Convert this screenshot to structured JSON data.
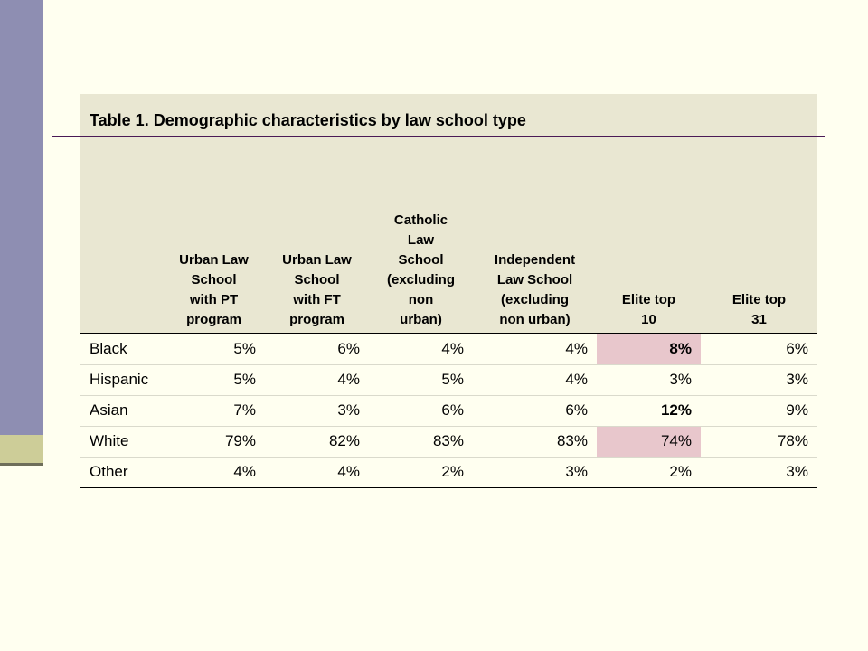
{
  "table": {
    "title": "Table 1. Demographic characteristics by law school type",
    "columns": [
      [
        "Urban Law",
        "School",
        "with PT",
        "program"
      ],
      [
        "Urban Law",
        "School",
        "with FT",
        "program"
      ],
      [
        "Catholic",
        "Law",
        "School",
        "(excluding",
        "non",
        "urban)"
      ],
      [
        "Independent",
        "Law School",
        "(excluding",
        "non urban)"
      ],
      [
        "Elite top",
        "10"
      ],
      [
        "Elite top",
        "31"
      ]
    ],
    "rows": [
      {
        "label": "Black",
        "values": [
          "5%",
          "6%",
          "4%",
          "4%",
          "8%",
          "6%"
        ]
      },
      {
        "label": "Hispanic",
        "values": [
          "5%",
          "4%",
          "5%",
          "4%",
          "3%",
          "3%"
        ]
      },
      {
        "label": "Asian",
        "values": [
          "7%",
          "3%",
          "6%",
          "6%",
          "12%",
          "9%"
        ]
      },
      {
        "label": "White",
        "values": [
          "79%",
          "82%",
          "83%",
          "83%",
          "74%",
          "78%"
        ]
      },
      {
        "label": "Other",
        "values": [
          "4%",
          "4%",
          "2%",
          "3%",
          "2%",
          "3%"
        ]
      }
    ]
  },
  "colors": {
    "sidebar": "#8E8EB2",
    "sidebar_accent": "#CDCD98",
    "title_rule": "#4A1A56",
    "band": "#E9E7D2",
    "highlight": "#E8C7CC",
    "background": "#FFFFF0"
  }
}
